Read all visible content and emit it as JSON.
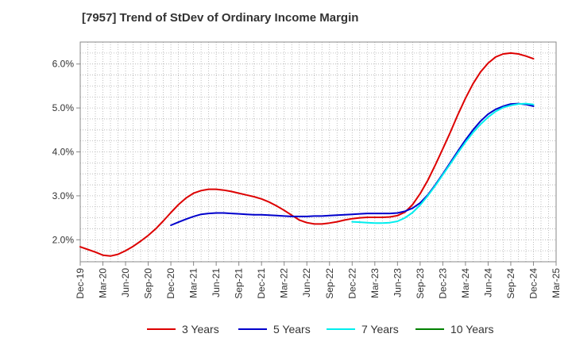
{
  "chart_data": {
    "type": "line",
    "title": "[7957]  Trend of StDev of Ordinary Income Margin",
    "xlabel": "",
    "ylabel": "",
    "ylim": [
      1.5,
      6.5
    ],
    "yticks": [
      2.0,
      3.0,
      4.0,
      5.0,
      6.0
    ],
    "ytick_labels": [
      "2.0%",
      "3.0%",
      "4.0%",
      "5.0%",
      "6.0%"
    ],
    "x_range": [
      "Dec-19",
      "Mar-25"
    ],
    "xtick_labels": [
      "Dec-19",
      "Mar-20",
      "Jun-20",
      "Sep-20",
      "Dec-20",
      "Mar-21",
      "Jun-21",
      "Sep-21",
      "Dec-21",
      "Mar-22",
      "Jun-22",
      "Sep-22",
      "Dec-22",
      "Mar-23",
      "Jun-23",
      "Sep-23",
      "Dec-23",
      "Mar-24",
      "Jun-24",
      "Sep-24",
      "Dec-24",
      "Mar-25"
    ],
    "grid": true,
    "legend_position": "bottom",
    "series": [
      {
        "name": "3 Years",
        "color": "#dd0000",
        "x": [
          "Dec-19",
          "Jan-20",
          "Feb-20",
          "Mar-20",
          "Apr-20",
          "May-20",
          "Jun-20",
          "Jul-20",
          "Aug-20",
          "Sep-20",
          "Oct-20",
          "Nov-20",
          "Dec-20",
          "Jan-21",
          "Feb-21",
          "Mar-21",
          "Apr-21",
          "May-21",
          "Jun-21",
          "Jul-21",
          "Aug-21",
          "Sep-21",
          "Oct-21",
          "Nov-21",
          "Dec-21",
          "Jan-22",
          "Feb-22",
          "Mar-22",
          "Apr-22",
          "May-22",
          "Jun-22",
          "Jul-22",
          "Aug-22",
          "Sep-22",
          "Oct-22",
          "Nov-22",
          "Dec-22",
          "Jan-23",
          "Feb-23",
          "Mar-23",
          "Apr-23",
          "May-23",
          "Jun-23",
          "Jul-23",
          "Aug-23",
          "Sep-23",
          "Oct-23",
          "Nov-23",
          "Dec-23",
          "Jan-24",
          "Feb-24",
          "Mar-24",
          "Apr-24",
          "May-24",
          "Jun-24",
          "Jul-24",
          "Aug-24",
          "Sep-24",
          "Oct-24",
          "Nov-24",
          "Dec-24"
        ],
        "values": [
          1.84,
          1.78,
          1.72,
          1.65,
          1.63,
          1.67,
          1.75,
          1.85,
          1.97,
          2.1,
          2.25,
          2.43,
          2.62,
          2.8,
          2.95,
          3.06,
          3.12,
          3.15,
          3.15,
          3.13,
          3.1,
          3.06,
          3.02,
          2.98,
          2.93,
          2.86,
          2.77,
          2.67,
          2.56,
          2.45,
          2.39,
          2.36,
          2.36,
          2.38,
          2.41,
          2.45,
          2.48,
          2.5,
          2.51,
          2.51,
          2.51,
          2.52,
          2.55,
          2.63,
          2.8,
          3.05,
          3.35,
          3.7,
          4.07,
          4.45,
          4.85,
          5.22,
          5.55,
          5.82,
          6.02,
          6.16,
          6.23,
          6.25,
          6.23,
          6.18,
          6.12
        ]
      },
      {
        "name": "5 Years",
        "color": "#0000cc",
        "x": [
          "Dec-20",
          "Jan-21",
          "Feb-21",
          "Mar-21",
          "Apr-21",
          "May-21",
          "Jun-21",
          "Jul-21",
          "Aug-21",
          "Sep-21",
          "Oct-21",
          "Nov-21",
          "Dec-21",
          "Jan-22",
          "Feb-22",
          "Mar-22",
          "Apr-22",
          "May-22",
          "Jun-22",
          "Jul-22",
          "Aug-22",
          "Sep-22",
          "Oct-22",
          "Nov-22",
          "Dec-22",
          "Jan-23",
          "Feb-23",
          "Mar-23",
          "Apr-23",
          "May-23",
          "Jun-23",
          "Jul-23",
          "Aug-23",
          "Sep-23",
          "Oct-23",
          "Nov-23",
          "Dec-23",
          "Jan-24",
          "Feb-24",
          "Mar-24",
          "Apr-24",
          "May-24",
          "Jun-24",
          "Jul-24",
          "Aug-24",
          "Sep-24",
          "Oct-24",
          "Nov-24",
          "Dec-24"
        ],
        "values": [
          2.33,
          2.4,
          2.47,
          2.53,
          2.58,
          2.6,
          2.61,
          2.61,
          2.6,
          2.59,
          2.58,
          2.57,
          2.57,
          2.56,
          2.55,
          2.54,
          2.53,
          2.53,
          2.53,
          2.54,
          2.54,
          2.55,
          2.56,
          2.57,
          2.58,
          2.59,
          2.6,
          2.6,
          2.6,
          2.6,
          2.61,
          2.65,
          2.72,
          2.84,
          3.02,
          3.25,
          3.5,
          3.76,
          4.02,
          4.27,
          4.5,
          4.7,
          4.86,
          4.97,
          5.04,
          5.09,
          5.1,
          5.08,
          5.04
        ]
      },
      {
        "name": "7 Years",
        "color": "#00eeee",
        "x": [
          "Dec-22",
          "Jan-23",
          "Feb-23",
          "Mar-23",
          "Apr-23",
          "May-23",
          "Jun-23",
          "Jul-23",
          "Aug-23",
          "Sep-23",
          "Oct-23",
          "Nov-23",
          "Dec-23",
          "Jan-24",
          "Feb-24",
          "Mar-24",
          "Apr-24",
          "May-24",
          "Jun-24",
          "Jul-24",
          "Aug-24",
          "Sep-24",
          "Oct-24",
          "Nov-24",
          "Dec-24"
        ],
        "values": [
          2.41,
          2.4,
          2.39,
          2.38,
          2.38,
          2.39,
          2.42,
          2.5,
          2.62,
          2.79,
          3.0,
          3.23,
          3.48,
          3.73,
          3.98,
          4.22,
          4.44,
          4.63,
          4.79,
          4.92,
          5.01,
          5.06,
          5.09,
          5.1,
          5.08
        ]
      },
      {
        "name": "10 Years",
        "color": "#008000",
        "x": [],
        "values": []
      }
    ]
  },
  "legend": {
    "items": [
      {
        "label": "3 Years",
        "color": "#dd0000"
      },
      {
        "label": "5 Years",
        "color": "#0000cc"
      },
      {
        "label": "7 Years",
        "color": "#00eeee"
      },
      {
        "label": "10 Years",
        "color": "#008000"
      }
    ]
  }
}
